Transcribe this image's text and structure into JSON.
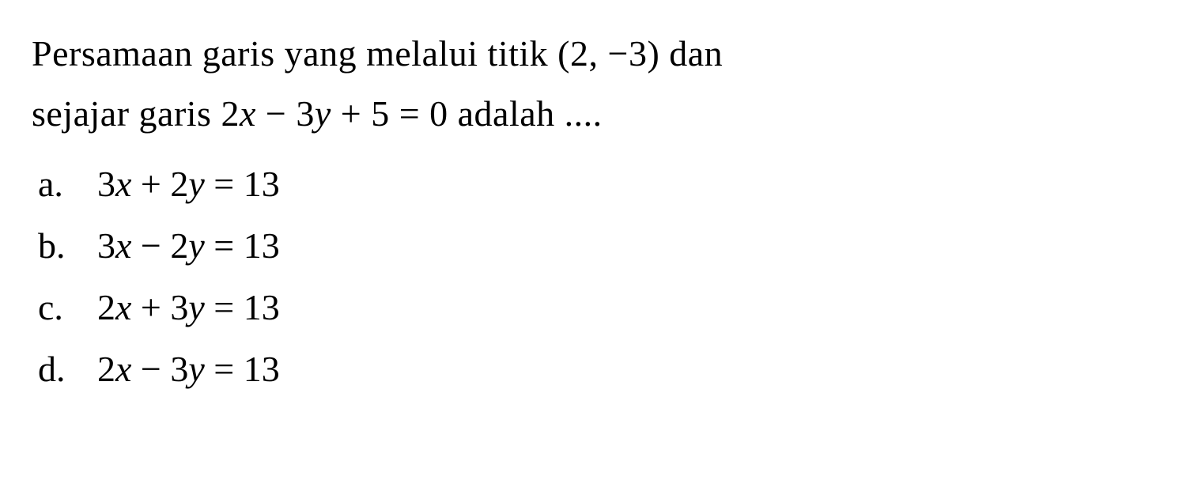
{
  "question": {
    "line1_part1": "Persamaan garis yang melalui titik (2, ",
    "line1_part2": "3) dan",
    "line2_part1": "sejajar garis 2",
    "line2_var1": "x",
    "line2_part2": " − 3",
    "line2_var2": "y",
    "line2_part3": " + 5 = 0 adalah ....",
    "minus": "−"
  },
  "options": {
    "a": {
      "letter": "a.",
      "eq_prefix": "3",
      "eq_var1": "x",
      "eq_mid": " + 2",
      "eq_var2": "y",
      "eq_suffix": " = 13"
    },
    "b": {
      "letter": "b.",
      "eq_prefix": "3",
      "eq_var1": "x",
      "eq_mid": " − 2",
      "eq_var2": "y",
      "eq_suffix": " = 13"
    },
    "c": {
      "letter": "c.",
      "eq_prefix": "2",
      "eq_var1": "x",
      "eq_mid": " + 3",
      "eq_var2": "y",
      "eq_suffix": " = 13"
    },
    "d": {
      "letter": "d.",
      "eq_prefix": "2",
      "eq_var1": "x",
      "eq_mid": " − 3",
      "eq_var2": "y",
      "eq_suffix": " = 13"
    }
  },
  "styling": {
    "background_color": "#ffffff",
    "text_color": "#000000",
    "font_family": "Times New Roman",
    "question_fontsize": 46,
    "option_fontsize": 46,
    "line_height": 1.65
  }
}
